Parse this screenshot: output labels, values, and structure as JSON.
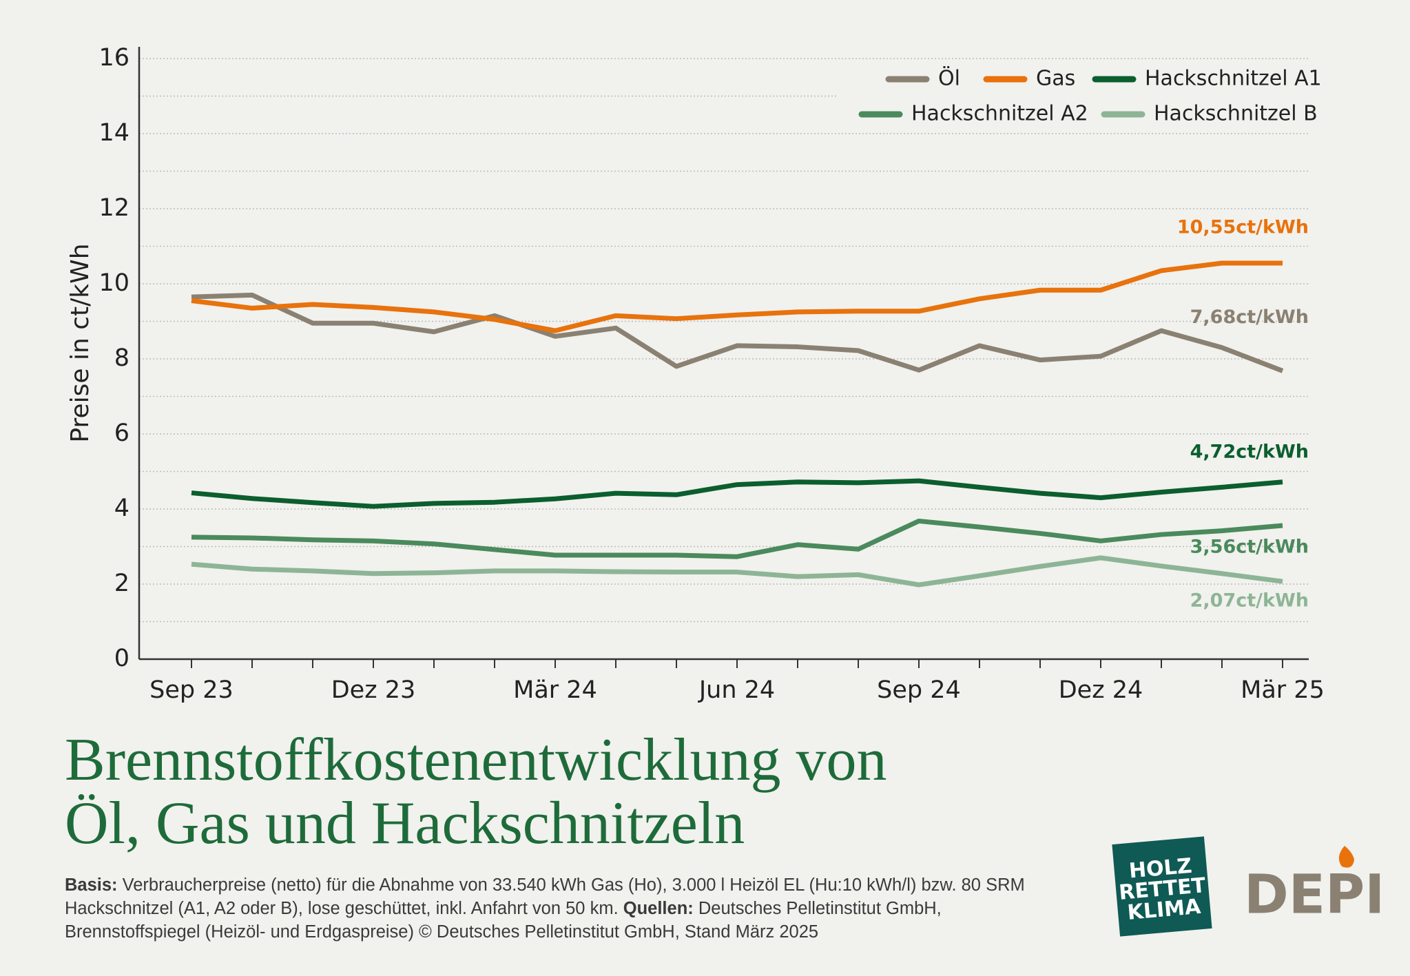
{
  "chart_data": {
    "type": "line",
    "y_label": "Preise in ct/kWh",
    "categories": [
      "Sep 23",
      null,
      null,
      "Dez 23",
      null,
      null,
      "Mär 24",
      null,
      null,
      "Jun 24",
      null,
      null,
      "Sep 24",
      null,
      null,
      "Dez 24",
      null,
      null,
      "Mär 25"
    ],
    "ylim": [
      0,
      16
    ],
    "yticks": [
      0,
      2,
      4,
      6,
      8,
      10,
      12,
      14,
      16
    ],
    "minor_yticks": [
      1,
      3,
      5,
      7,
      9,
      11,
      13,
      15
    ],
    "grid": true,
    "legend": "top-right",
    "series": [
      {
        "name": "Öl",
        "color": "#8a8172",
        "values": [
          9.65,
          9.7,
          8.95,
          8.95,
          8.72,
          9.15,
          8.6,
          8.82,
          7.8,
          8.35,
          8.32,
          8.22,
          7.7,
          8.35,
          7.97,
          8.07,
          8.75,
          8.3,
          7.68
        ],
        "value_labels": [
          null,
          null,
          null,
          null,
          null,
          null,
          null,
          null,
          null,
          null,
          null,
          null,
          null,
          null,
          null,
          null,
          null,
          null,
          "7,68ct/kWh"
        ]
      },
      {
        "name": "Gas",
        "color": "#e8720c",
        "values": [
          9.55,
          9.35,
          9.45,
          9.37,
          9.25,
          9.05,
          8.75,
          9.15,
          9.07,
          9.17,
          9.25,
          9.27,
          9.27,
          9.6,
          9.83,
          9.83,
          10.35,
          10.55,
          10.55
        ],
        "value_labels": [
          null,
          null,
          null,
          null,
          null,
          null,
          null,
          null,
          null,
          null,
          null,
          null,
          null,
          null,
          null,
          null,
          null,
          null,
          "10,55ct/kWh"
        ]
      },
      {
        "name": "Hackschnitzel A1",
        "color": "#0b5e2e",
        "values": [
          4.43,
          4.28,
          4.17,
          4.07,
          4.15,
          4.18,
          4.27,
          4.42,
          4.38,
          4.65,
          4.72,
          4.7,
          4.75,
          4.58,
          4.42,
          4.3,
          4.45,
          4.58,
          4.72
        ],
        "value_labels": [
          null,
          null,
          null,
          null,
          null,
          null,
          null,
          null,
          null,
          null,
          null,
          null,
          null,
          null,
          null,
          null,
          null,
          null,
          "4,72ct/kWh"
        ]
      },
      {
        "name": "Hackschnitzel A2",
        "color": "#4a8a5c",
        "values": [
          3.25,
          3.23,
          3.18,
          3.15,
          3.07,
          2.92,
          2.77,
          2.77,
          2.77,
          2.73,
          3.05,
          2.93,
          3.68,
          3.52,
          3.35,
          3.15,
          3.32,
          3.42,
          3.56
        ],
        "value_labels": [
          null,
          null,
          null,
          null,
          null,
          null,
          null,
          null,
          null,
          null,
          null,
          null,
          null,
          null,
          null,
          null,
          null,
          null,
          "3,56ct/kWh"
        ]
      },
      {
        "name": "Hackschnitzel B",
        "color": "#8db595",
        "values": [
          2.53,
          2.4,
          2.35,
          2.28,
          2.3,
          2.35,
          2.35,
          2.33,
          2.32,
          2.32,
          2.2,
          2.25,
          1.98,
          2.22,
          2.47,
          2.7,
          2.48,
          2.28,
          2.07
        ],
        "value_labels": [
          null,
          null,
          null,
          null,
          null,
          null,
          null,
          null,
          null,
          null,
          null,
          null,
          null,
          null,
          null,
          null,
          null,
          null,
          "2,07ct/kWh"
        ]
      }
    ]
  },
  "title": [
    "Brennstoffkostenentwicklung von",
    "Öl, Gas und Hackschnitzeln"
  ],
  "footnote": {
    "basis_label": "Basis:",
    "basis": "Verbraucherpreise (netto) für die Abnahme von 33.540 kWh Gas (Ho), 3.000 l Heizöl EL (Hu:10 kWh/l) bzw. 80 SRM Hackschnitzel (A1, A2 oder B), lose geschüttet, inkl. Anfahrt von 50 km.",
    "sources_label": "Quellen:",
    "sources": "Deutsches Pelletinstitut GmbH, Brennstoffspiegel (Heizöl- und Erdgaspreise) © Deutsches Pelletinstitut GmbH, Stand März 2025"
  },
  "logos": {
    "holz": [
      "HOLZ",
      "RETTET",
      "KLIMA"
    ],
    "depi": "DEPI"
  }
}
